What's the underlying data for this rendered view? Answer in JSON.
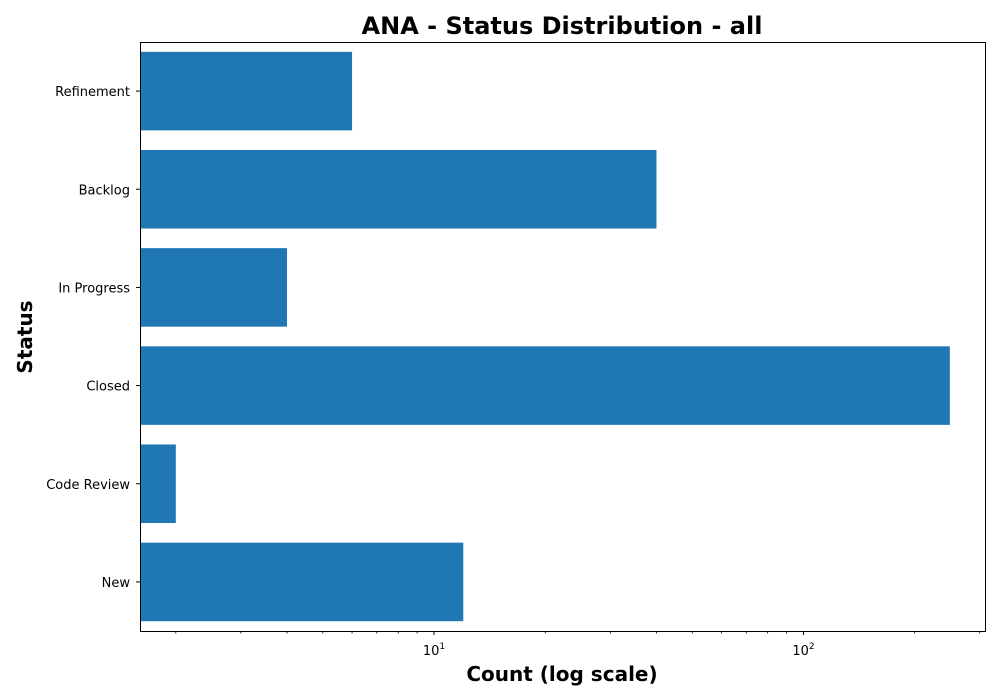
{
  "chart_data": {
    "type": "bar",
    "orientation": "horizontal",
    "title": "ANA - Status Distribution - all",
    "xlabel": "Count (log scale)",
    "ylabel": "Status",
    "x_scale": "log",
    "xlim": [
      1.6,
      310
    ],
    "x_ticks": [
      10,
      100
    ],
    "x_tick_labels": [
      {
        "base": "10",
        "exp": "1"
      },
      {
        "base": "10",
        "exp": "2"
      }
    ],
    "categories": [
      "New",
      "Code Review",
      "Closed",
      "In Progress",
      "Backlog",
      "Refinement"
    ],
    "values": [
      12,
      2,
      249,
      4,
      40,
      6
    ],
    "bar_color": "#1f77b4",
    "grid": false,
    "legend": "none"
  }
}
